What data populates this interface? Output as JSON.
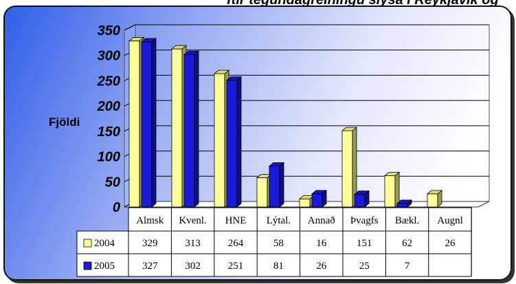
{
  "title": "ftir tegundagreiningu slysa í Reykjavík og",
  "chart_data": {
    "type": "bar",
    "categories": [
      "Almsk",
      "Kvenl.",
      "HNE",
      "Lýtal.",
      "Annað",
      "Þvagfs",
      "Bækl.",
      "Augnl"
    ],
    "series": [
      {
        "name": "2004",
        "values": [
          329,
          313,
          264,
          58,
          16,
          151,
          62,
          26
        ],
        "color": "#ffff99"
      },
      {
        "name": "2005",
        "values": [
          327,
          302,
          251,
          81,
          26,
          25,
          7,
          null
        ],
        "color": "#1a1ad8"
      }
    ],
    "table": [
      [
        "329",
        "313",
        "264",
        "58",
        "16",
        "151",
        "62",
        "26"
      ],
      [
        "327",
        "302",
        "251",
        "81",
        "26",
        "25",
        "7",
        ""
      ]
    ],
    "ylabel": "Fjöldi",
    "yticks": [
      "0",
      "50",
      "100",
      "150",
      "200",
      "250",
      "300",
      "350"
    ],
    "ylim": [
      0,
      350
    ],
    "grid": true,
    "legend": "data-table"
  }
}
